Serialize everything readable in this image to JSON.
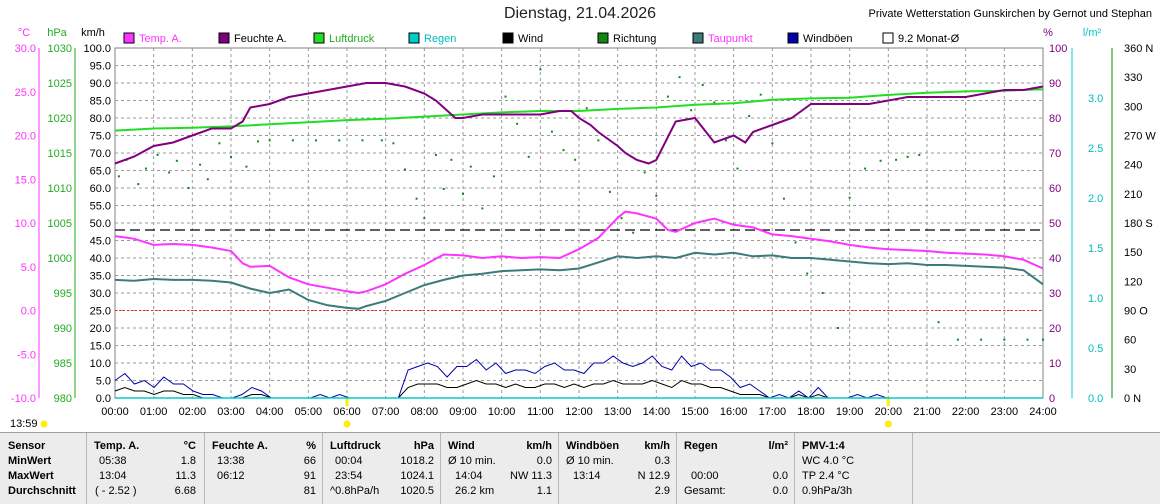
{
  "header": {
    "title": "Dienstag, 21.04.2026",
    "station": "Private Wetterstation Gunskirchen by Gernot und Stephan",
    "time_marker": "13:59"
  },
  "legend": [
    {
      "label": "Temp. A.",
      "color": "#ff33ff",
      "text_color": "#ff33ff"
    },
    {
      "label": "Feuchte A.",
      "color": "#800080",
      "text_color": "#000000"
    },
    {
      "label": "Luftdruck",
      "color": "#22dd22",
      "text_color": "#22aa22"
    },
    {
      "label": "Regen",
      "color": "#00cccc",
      "text_color": "#00bbbb"
    },
    {
      "label": "Wind",
      "color": "#000000",
      "text_color": "#000000"
    },
    {
      "label": "Richtung",
      "color": "#118811",
      "text_color": "#000000"
    },
    {
      "label": "Taupunkt",
      "color": "#3d7a7a",
      "text_color": "#ff33ff"
    },
    {
      "label": "Windböen",
      "color": "#0000aa",
      "text_color": "#000000"
    },
    {
      "label": "9.2 Monat-Ø",
      "color": "#ffffff",
      "text_color": "#000000"
    }
  ],
  "axes": {
    "temp_unit": "°C",
    "temp_ticks": [
      "30.0",
      "25.0",
      "20.0",
      "15.0",
      "10.0",
      "5.0",
      "0.0",
      "-5.0",
      "-10.0"
    ],
    "press_unit": "hPa",
    "press_ticks": [
      "1030",
      "1025",
      "1020",
      "1015",
      "1010",
      "1005",
      "1000",
      "995",
      "990",
      "985",
      "980"
    ],
    "wind_unit": "km/h",
    "wind_ticks": [
      "100.0",
      "95.0",
      "90.0",
      "85.0",
      "80.0",
      "75.0",
      "70.0",
      "65.0",
      "60.0",
      "55.0",
      "50.0",
      "45.0",
      "40.0",
      "35.0",
      "30.0",
      "25.0",
      "20.0",
      "15.0",
      "10.0",
      "5.0",
      "0.0"
    ],
    "hum_unit": "%",
    "hum_ticks": [
      "100",
      "90",
      "80",
      "70",
      "60",
      "50",
      "40",
      "30",
      "20",
      "10",
      "0"
    ],
    "rain_unit": "l/m²",
    "rain_ticks": [
      "3.0",
      "2.5",
      "2.0",
      "1.5",
      "1.0",
      "0.5",
      "0.0"
    ],
    "dir_unit": "360 N",
    "dir_ticks": [
      "330",
      "300",
      "270 W",
      "240",
      "210",
      "180 S",
      "150",
      "120",
      "90 O",
      "60",
      "30",
      "0 N"
    ],
    "x_ticks": [
      "00:00",
      "01:00",
      "02:00",
      "03:00",
      "04:00",
      "05:00",
      "06:00",
      "07:00",
      "08:00",
      "09:00",
      "10:00",
      "11:00",
      "12:00",
      "13:00",
      "14:00",
      "15:00",
      "16:00",
      "17:00",
      "18:00",
      "19:00",
      "20:00",
      "21:00",
      "22:00",
      "23:00",
      "24:00"
    ]
  },
  "chart_data": {
    "type": "line",
    "x_unit": "hour",
    "reference_lines": {
      "temperature_zero": 0.0,
      "wind_dashed": 48
    },
    "series": [
      {
        "name": "Temp. A.",
        "axis": "temp",
        "color": "#ff33ff",
        "x": [
          0,
          0.5,
          1,
          1.5,
          2,
          2.5,
          3,
          3.3,
          3.5,
          4,
          4.5,
          5,
          5.5,
          6,
          6.3,
          6.5,
          7,
          7.5,
          8,
          8.5,
          9,
          9.5,
          10,
          10.5,
          11,
          11.5,
          12,
          12.5,
          13,
          13.2,
          13.5,
          14,
          14.3,
          14.5,
          15,
          15.3,
          15.5,
          16,
          16.5,
          17,
          17.5,
          18,
          18.5,
          19,
          19.5,
          20,
          20.5,
          21,
          21.5,
          22,
          22.5,
          23,
          23.5,
          24
        ],
        "y": [
          8.5,
          8.2,
          7.5,
          7.6,
          7.5,
          7.2,
          6.8,
          5.4,
          5.0,
          5.1,
          3.8,
          3.0,
          2.6,
          2.2,
          2.0,
          2.2,
          3.0,
          4.2,
          5.2,
          6.4,
          6.3,
          6.0,
          6.2,
          6.0,
          6.1,
          6.0,
          7.0,
          8.3,
          10.6,
          11.3,
          11.1,
          10.5,
          9.2,
          9.0,
          10.0,
          10.3,
          10.5,
          9.8,
          9.5,
          8.7,
          8.5,
          8.2,
          7.9,
          7.5,
          7.2,
          7.0,
          6.9,
          6.8,
          6.6,
          6.5,
          6.4,
          6.2,
          5.8,
          4.8
        ]
      },
      {
        "name": "Taupunkt",
        "axis": "temp",
        "color": "#3d7a7a",
        "x": [
          0,
          0.5,
          1,
          1.5,
          2,
          2.5,
          3,
          3.5,
          4,
          4.5,
          5,
          5.5,
          6,
          6.3,
          6.5,
          7,
          7.5,
          8,
          8.5,
          9,
          9.5,
          10,
          10.5,
          11,
          11.5,
          12,
          12.5,
          13,
          13.5,
          14,
          14.5,
          15,
          15.5,
          16,
          16.5,
          17,
          17.5,
          18,
          18.5,
          19,
          19.5,
          20,
          20.5,
          21,
          21.5,
          22,
          22.5,
          23,
          23.5,
          24
        ],
        "y": [
          3.5,
          3.4,
          3.6,
          3.5,
          3.5,
          3.4,
          3.2,
          2.5,
          2.0,
          2.4,
          1.2,
          0.6,
          0.3,
          0.2,
          0.5,
          1.1,
          2.0,
          2.9,
          3.5,
          4.0,
          4.2,
          4.5,
          4.6,
          4.7,
          4.6,
          4.8,
          5.5,
          6.2,
          6.0,
          6.2,
          6.0,
          6.6,
          6.4,
          6.6,
          6.2,
          6.3,
          6.0,
          6.0,
          5.8,
          5.6,
          5.4,
          5.3,
          5.4,
          5.2,
          5.2,
          5.1,
          5.0,
          4.9,
          4.6,
          3.0
        ]
      },
      {
        "name": "Feuchte A.",
        "axis": "hum",
        "color": "#800080",
        "x": [
          0,
          0.5,
          1,
          1.5,
          2,
          2.5,
          3,
          3.3,
          3.5,
          4,
          4.5,
          5,
          5.5,
          6,
          6.5,
          7,
          7.5,
          8,
          8.3,
          8.5,
          8.8,
          9,
          9.5,
          10,
          10.5,
          11,
          11.5,
          11.8,
          12,
          12.3,
          12.5,
          13,
          13.2,
          13.5,
          13.8,
          14,
          14.5,
          15,
          15.5,
          16,
          16.3,
          16.5,
          17,
          17.5,
          18,
          18.5,
          19,
          19.5,
          20,
          20.5,
          21,
          21.5,
          22,
          22.5,
          23,
          23.5,
          24
        ],
        "y": [
          67,
          69,
          72,
          73,
          75,
          77,
          77,
          79,
          83,
          84,
          86,
          87,
          88,
          89,
          90,
          90,
          89,
          87,
          85,
          83,
          80,
          80,
          81,
          81,
          81,
          81,
          82,
          82,
          80,
          78,
          76,
          72,
          70,
          68,
          67,
          68,
          79,
          80,
          73,
          75,
          73,
          76,
          78,
          80,
          84,
          84,
          84,
          84,
          85,
          86,
          86,
          86,
          86,
          87,
          88,
          88,
          89
        ]
      },
      {
        "name": "Luftdruck",
        "axis": "press",
        "color": "#22dd22",
        "x": [
          0,
          1,
          2,
          3,
          4,
          5,
          6,
          7,
          8,
          9,
          10,
          11,
          12,
          13,
          14,
          15,
          16,
          17,
          18,
          19,
          20,
          21,
          22,
          23,
          24
        ],
        "y": [
          1018.2,
          1018.5,
          1018.6,
          1018.8,
          1019.1,
          1019.4,
          1019.7,
          1019.9,
          1020.2,
          1020.5,
          1020.8,
          1021.0,
          1021.0,
          1021.3,
          1021.5,
          1021.9,
          1022.1,
          1022.6,
          1022.8,
          1022.9,
          1023.3,
          1023.6,
          1023.8,
          1023.9,
          1024.1
        ]
      },
      {
        "name": "Richtung",
        "axis": "dir",
        "color": "#118811",
        "x": [
          0.1,
          0.3,
          0.6,
          0.8,
          1.1,
          1.4,
          1.6,
          1.9,
          2.2,
          2.4,
          2.7,
          3.0,
          3.4,
          3.7,
          4.0,
          4.6,
          5.2,
          5.8,
          6.4,
          6.9,
          7.2,
          7.5,
          7.8,
          8.0,
          8.3,
          8.5,
          8.7,
          9.0,
          9.2,
          9.5,
          9.8,
          10.1,
          10.4,
          10.7,
          11.0,
          11.3,
          11.6,
          11.9,
          12.2,
          12.5,
          12.8,
          13.1,
          13.4,
          13.7,
          14.0,
          14.3,
          14.6,
          14.9,
          15.2,
          15.5,
          15.8,
          16.1,
          16.4,
          16.7,
          17.0,
          17.3,
          17.6,
          17.9,
          18.3,
          18.7,
          19.0,
          19.4,
          19.8,
          20.2,
          20.5,
          20.8,
          21.3,
          21.8,
          22.4,
          23.0,
          23.6,
          24
        ],
        "y": [
          228,
          245,
          220,
          236,
          250,
          232,
          244,
          216,
          240,
          225,
          262,
          248,
          238,
          264,
          265,
          265,
          265,
          265,
          265,
          265,
          262,
          235,
          205,
          185,
          250,
          215,
          245,
          210,
          238,
          195,
          228,
          310,
          282,
          248,
          338,
          274,
          255,
          245,
          298,
          265,
          212,
          185,
          170,
          232,
          208,
          310,
          330,
          296,
          322,
          304,
          265,
          236,
          290,
          312,
          262,
          205,
          160,
          128,
          108,
          72,
          206,
          236,
          244,
          245,
          248,
          250,
          78,
          60,
          60,
          60,
          60,
          60
        ]
      },
      {
        "name": "Windböen",
        "axis": "wind",
        "color": "#0000aa",
        "values_kmh": [
          5,
          7,
          4,
          5,
          3,
          6,
          4,
          4,
          2,
          1,
          1,
          0,
          0,
          1,
          3,
          2,
          0,
          0,
          0,
          0,
          0,
          1,
          0,
          1,
          0,
          0,
          0,
          0,
          0,
          0,
          8,
          9,
          10,
          9,
          6,
          9,
          9,
          11,
          8,
          10,
          7,
          8,
          8,
          7,
          9,
          10,
          8,
          8,
          7,
          10,
          10,
          12,
          10,
          9,
          10,
          12,
          9,
          8,
          12,
          9,
          10,
          8,
          8,
          6,
          3,
          4,
          2,
          0,
          1,
          0,
          2,
          0,
          3,
          0,
          0,
          0,
          1,
          0,
          1,
          0,
          0,
          0,
          0,
          0,
          0,
          0,
          0,
          0,
          0,
          0,
          0,
          0,
          0,
          0,
          0,
          0
        ]
      },
      {
        "name": "Wind",
        "axis": "wind",
        "color": "#000000",
        "values_kmh": [
          2,
          3,
          2,
          2,
          1,
          2,
          2,
          1,
          1,
          0,
          0,
          0,
          0,
          0,
          1,
          1,
          0,
          0,
          0,
          0,
          0,
          0,
          0,
          0,
          0,
          0,
          0,
          0,
          0,
          0,
          3,
          4,
          4,
          4,
          3,
          3,
          4,
          5,
          4,
          4,
          3,
          4,
          3,
          3,
          4,
          4,
          3,
          4,
          3,
          4,
          4,
          5,
          4,
          4,
          4,
          5,
          4,
          3,
          5,
          4,
          4,
          3,
          3,
          2,
          1,
          1,
          1,
          0,
          0,
          0,
          1,
          0,
          1,
          0,
          0,
          0,
          0,
          0,
          0,
          0,
          0,
          0,
          0,
          0,
          0,
          0,
          0,
          0,
          0,
          0,
          0,
          0,
          0,
          0,
          0,
          0
        ]
      },
      {
        "name": "Regen",
        "axis": "rain",
        "color": "#00cccc",
        "x": [
          0,
          24
        ],
        "y": [
          0,
          0
        ]
      }
    ]
  },
  "stats": {
    "sensor": {
      "title": "Sensor",
      "r1": "MinWert",
      "r2": "MaxWert",
      "r3": "Durchschnitt"
    },
    "temp": {
      "title": "Temp. A.",
      "unit": "°C",
      "r1a": "05:38",
      "r1b": "1.8",
      "r2a": "13:04",
      "r2b": "11.3",
      "r3a": "( - 2.52 )",
      "r3b": "6.68"
    },
    "hum": {
      "title": "Feuchte A.",
      "unit": "%",
      "r1a": "13:38",
      "r1b": "66",
      "r2a": "06:12",
      "r2b": "91",
      "r3a": "",
      "r3b": "81"
    },
    "press": {
      "title": "Luftdruck",
      "unit": "hPa",
      "r1a": "00:04",
      "r1b": "1018.2",
      "r2a": "23:54",
      "r2b": "1024.1",
      "r3a": "^0.8hPa/h",
      "r3b": "1020.5"
    },
    "wind": {
      "title": "Wind",
      "unit": "km/h",
      "r1a": "Ø 10 min.",
      "r1b": "0.0",
      "r2a": "14:04",
      "r2m": "NW 11.3",
      "r3a": "26.2 km",
      "r3b": "1.1"
    },
    "gust": {
      "title": "Windböen",
      "unit": "km/h",
      "r1a": "Ø 10 min.",
      "r1b": "0.3",
      "r2a": "13:14",
      "r2b": "N 12.9",
      "r3b": "2.9"
    },
    "rain": {
      "title": "Regen",
      "unit": "l/m²",
      "r2a": "00:00",
      "r2b": "0.0",
      "r3a": "Gesamt:",
      "r3b": "0.0"
    },
    "pmv": {
      "title": "PMV-1:4",
      "r1": "WC 4.0 °C",
      "r2": "TP 2.4 °C",
      "r3": "0.9hPa/3h"
    }
  }
}
